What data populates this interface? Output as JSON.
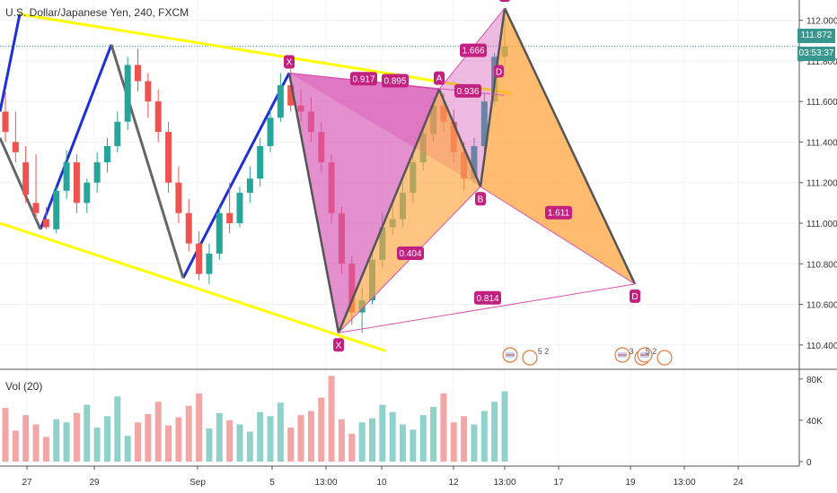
{
  "header": {
    "title": "U.S. Dollar/Japanese Yen, 240, FXCM"
  },
  "volume_label": "Vol (20)",
  "price_tag": {
    "last": "111.872",
    "countdown": "03:53:37"
  },
  "colors": {
    "up": "#26a69a",
    "down": "#ef5350",
    "vol_up": "#8fd2cb",
    "vol_down": "#f3a6a6",
    "trend": "#ffff00",
    "blue": "#1e2fd6",
    "pink": "#d653b4",
    "orange": "#ffa53f",
    "label_bg": "#c2217f",
    "bg": "#ffffff"
  },
  "chart_data": {
    "type": "candlestick",
    "title": "U.S. Dollar/Japanese Yen, 240, FXCM",
    "y_ticks": [
      "112.000",
      "111.800",
      "111.600",
      "111.400",
      "111.200",
      "111.000",
      "110.800",
      "110.600",
      "110.400"
    ],
    "x_ticks": [
      "27",
      "29",
      "Sep",
      "5",
      "13:00",
      "10",
      "12",
      "13:00",
      "17",
      "19",
      "13:00",
      "24"
    ],
    "ylim": [
      110.28,
      112.1
    ],
    "volume_ticks": [
      "80K",
      "40K",
      "0"
    ],
    "volume_ylim": [
      0,
      85000
    ],
    "candles": [
      [
        111.55,
        111.65,
        111.45,
        111.4
      ],
      [
        111.4,
        111.55,
        111.35,
        111.3
      ],
      [
        111.3,
        111.38,
        111.14,
        111.1
      ],
      [
        111.1,
        111.34,
        111.05,
        111.02
      ],
      [
        111.02,
        111.08,
        110.98,
        110.97
      ],
      [
        110.97,
        111.18,
        111.16,
        110.95
      ],
      [
        111.16,
        111.36,
        111.3,
        111.12
      ],
      [
        111.3,
        111.34,
        111.1,
        111.05
      ],
      [
        111.1,
        111.22,
        111.2,
        111.05
      ],
      [
        111.2,
        111.35,
        111.3,
        111.15
      ],
      [
        111.3,
        111.42,
        111.38,
        111.25
      ],
      [
        111.38,
        111.55,
        111.5,
        111.35
      ],
      [
        111.5,
        111.82,
        111.78,
        111.46
      ],
      [
        111.78,
        111.86,
        111.7,
        111.65
      ],
      [
        111.7,
        111.74,
        111.6,
        111.52
      ],
      [
        111.6,
        111.66,
        111.45,
        111.4
      ],
      [
        111.45,
        111.5,
        111.2,
        111.15
      ],
      [
        111.2,
        111.28,
        111.05,
        111.0
      ],
      [
        111.05,
        111.12,
        110.9,
        110.86
      ],
      [
        110.9,
        110.96,
        110.75,
        110.72
      ],
      [
        110.75,
        110.9,
        110.85,
        110.7
      ],
      [
        110.85,
        111.08,
        111.05,
        110.82
      ],
      [
        111.05,
        111.2,
        111.0,
        110.95
      ],
      [
        111.0,
        111.18,
        111.15,
        110.98
      ],
      [
        111.15,
        111.28,
        111.22,
        111.1
      ],
      [
        111.22,
        111.42,
        111.38,
        111.18
      ],
      [
        111.38,
        111.56,
        111.52,
        111.35
      ],
      [
        111.52,
        111.74,
        111.68,
        111.5
      ],
      [
        111.68,
        111.76,
        111.58,
        111.55
      ],
      [
        111.58,
        111.66,
        111.55,
        111.5
      ],
      [
        111.55,
        111.62,
        111.45,
        111.4
      ],
      [
        111.45,
        111.5,
        111.3,
        111.25
      ],
      [
        111.3,
        111.34,
        111.05,
        111.0
      ],
      [
        111.05,
        111.08,
        110.8,
        110.75
      ],
      [
        110.8,
        110.84,
        110.56,
        110.5
      ],
      [
        110.56,
        110.68,
        110.62,
        110.46
      ],
      [
        110.62,
        110.86,
        110.82,
        110.6
      ],
      [
        110.82,
        111.05,
        110.98,
        110.78
      ],
      [
        110.98,
        111.12,
        111.02,
        110.94
      ],
      [
        111.02,
        111.2,
        111.15,
        110.98
      ],
      [
        111.15,
        111.34,
        111.3,
        111.1
      ],
      [
        111.3,
        111.48,
        111.44,
        111.26
      ],
      [
        111.44,
        111.62,
        111.58,
        111.4
      ],
      [
        111.58,
        111.64,
        111.5,
        111.45
      ],
      [
        111.5,
        111.56,
        111.35,
        111.3
      ],
      [
        111.35,
        111.4,
        111.22,
        111.16
      ],
      [
        111.22,
        111.42,
        111.38,
        111.2
      ],
      [
        111.38,
        111.64,
        111.6,
        111.36
      ],
      [
        111.6,
        111.84,
        111.82,
        111.58
      ],
      [
        111.82,
        112.06,
        111.87,
        111.78
      ]
    ],
    "volume": [
      52,
      30,
      45,
      36,
      24,
      41,
      38,
      47,
      55,
      33,
      44,
      63,
      25,
      38,
      46,
      58,
      35,
      43,
      54,
      66,
      32,
      47,
      40,
      36,
      29,
      48,
      44,
      57,
      33,
      45,
      49,
      62,
      83,
      41,
      27,
      38,
      42,
      55,
      48,
      36,
      31,
      45,
      53,
      66,
      38,
      44,
      36,
      49,
      58,
      68
    ],
    "pattern": {
      "points": [
        {
          "label": "X",
          "price": 111.74
        },
        {
          "label": "X",
          "price": 110.46
        },
        {
          "label": "A",
          "price": 111.66
        },
        {
          "label": "B",
          "price": 111.18
        },
        {
          "label": "C",
          "price": 112.06
        },
        {
          "label": "D",
          "price": 110.7
        }
      ],
      "ratios": [
        "0.917",
        "0.895",
        "0.936",
        "1.666",
        "0.404",
        "1.611",
        "0.814"
      ]
    },
    "event_badges": [
      "5 2",
      "3",
      "5 2"
    ],
    "extra_labels": [
      "D"
    ]
  }
}
